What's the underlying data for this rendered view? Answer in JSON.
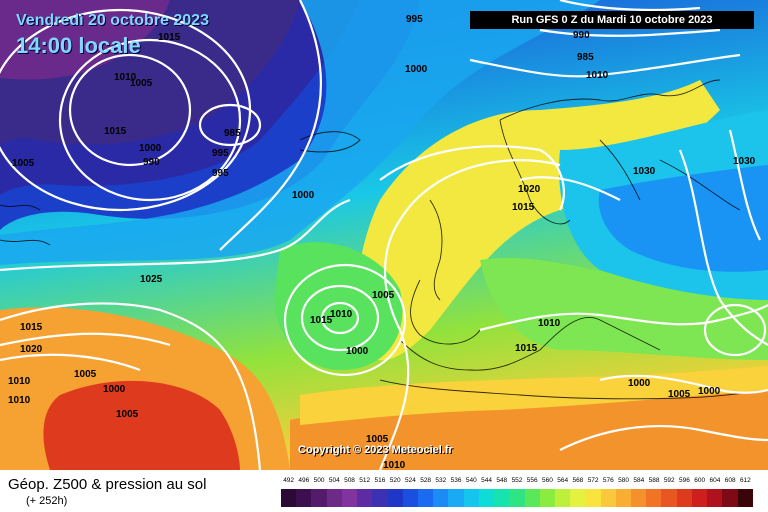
{
  "header": {
    "valid_date": "Vendredi 20 octobre 2023",
    "local_time": "14:00 locale",
    "run_info": "Run GFS 0 Z du Mardi 10 octobre 2023"
  },
  "map": {
    "copyright": "Copyright © 2023 Meteociel.fr",
    "isobar_labels": [
      "1015",
      "995",
      "1010",
      "1005",
      "1015",
      "1000",
      "985",
      "990",
      "995",
      "1000",
      "990",
      "985",
      "1010",
      "1005",
      "995",
      "1000",
      "1020",
      "1015",
      "1030",
      "1030",
      "1025",
      "1015",
      "1010",
      "1000",
      "1005",
      "1015",
      "1020",
      "1010",
      "1010",
      "1005",
      "1000",
      "1005",
      "1010",
      "1015",
      "1000",
      "1005",
      "1000",
      "1005",
      "1010"
    ]
  },
  "footer": {
    "title": "Géop. Z500 & pression au sol",
    "subtitle": "(+ 252h)"
  },
  "legend": {
    "ticks": [
      "492",
      "496",
      "500",
      "504",
      "508",
      "512",
      "516",
      "520",
      "524",
      "528",
      "532",
      "536",
      "540",
      "544",
      "548",
      "552",
      "556",
      "560",
      "564",
      "568",
      "572",
      "576",
      "580",
      "584",
      "588",
      "592",
      "596",
      "600",
      "604",
      "608",
      "612"
    ],
    "colors": [
      "#2b0a36",
      "#3d0f4e",
      "#541b6a",
      "#6c2b86",
      "#8134a0",
      "#5d2ca3",
      "#3d31b3",
      "#1f37c6",
      "#1b4fe0",
      "#1a6bf0",
      "#1b8bf6",
      "#1aa9f4",
      "#14c6ee",
      "#0fdbd7",
      "#16e3ad",
      "#2ee483",
      "#5ae85a",
      "#8aec3f",
      "#bdf03a",
      "#e4f23f",
      "#f8e43d",
      "#fac83a",
      "#f8ad33",
      "#f5902c",
      "#f07326",
      "#e85621",
      "#de3a1e",
      "#cd201e",
      "#b0121d",
      "#7d0a14",
      "#3a0508"
    ]
  }
}
